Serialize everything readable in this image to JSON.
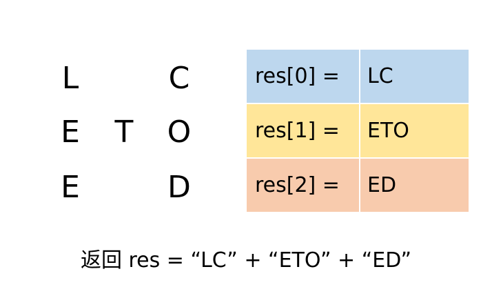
{
  "grid": {
    "rows": [
      [
        "L",
        "",
        "C"
      ],
      [
        "E",
        "T",
        "O"
      ],
      [
        "E",
        "",
        "D"
      ]
    ]
  },
  "table": {
    "rows": [
      {
        "label": "res[0] =",
        "value": "LC",
        "color": "#bdd7ee"
      },
      {
        "label": "res[1] =",
        "value": "ETO",
        "color": "#ffe699"
      },
      {
        "label": "res[2] =",
        "value": "ED",
        "color": "#f8cbad"
      }
    ]
  },
  "caption": "返回 res = “LC” + “ETO” + “ED”"
}
